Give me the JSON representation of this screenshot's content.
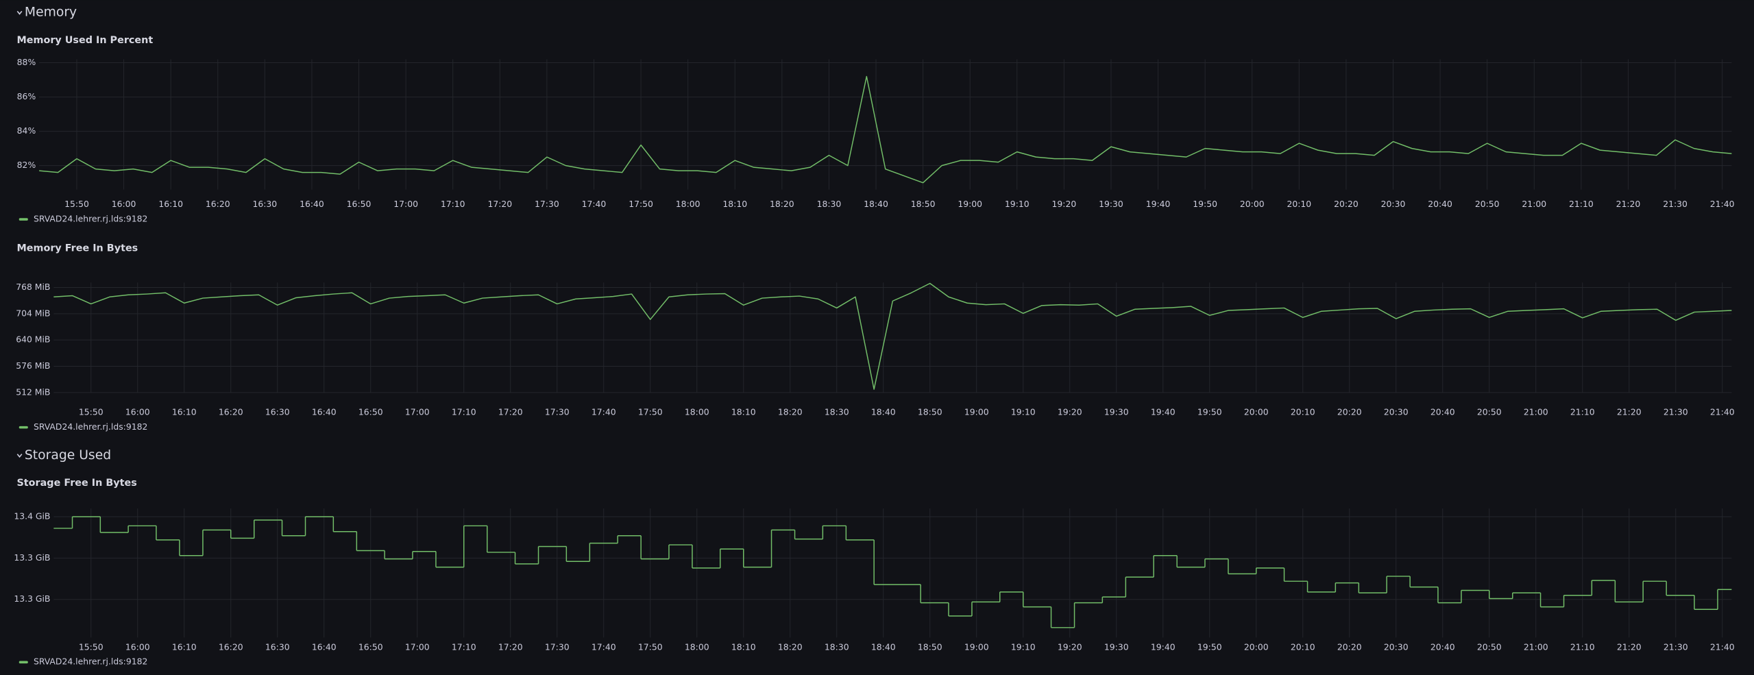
{
  "sections": [
    "Memory",
    "Storage Used"
  ],
  "chart_data": [
    {
      "type": "line",
      "title": "Memory Used In Percent",
      "grid": true,
      "x": [
        "15:42",
        "15:46",
        "15:50",
        "15:54",
        "15:58",
        "16:02",
        "16:06",
        "16:10",
        "16:14",
        "16:18",
        "16:22",
        "16:26",
        "16:30",
        "16:34",
        "16:38",
        "16:42",
        "16:46",
        "16:50",
        "16:54",
        "16:58",
        "17:02",
        "17:06",
        "17:10",
        "17:14",
        "17:18",
        "17:22",
        "17:26",
        "17:30",
        "17:34",
        "17:38",
        "17:42",
        "17:46",
        "17:50",
        "17:54",
        "17:58",
        "18:02",
        "18:06",
        "18:10",
        "18:14",
        "18:18",
        "18:22",
        "18:26",
        "18:30",
        "18:34",
        "18:38",
        "18:42",
        "18:46",
        "18:50",
        "18:54",
        "18:58",
        "19:02",
        "19:06",
        "19:10",
        "19:14",
        "19:18",
        "19:22",
        "19:26",
        "19:30",
        "19:34",
        "19:38",
        "19:42",
        "19:46",
        "19:50",
        "19:54",
        "19:58",
        "20:02",
        "20:06",
        "20:10",
        "20:14",
        "20:18",
        "20:22",
        "20:26",
        "20:30",
        "20:34",
        "20:38",
        "20:42",
        "20:46",
        "20:50",
        "20:54",
        "20:58",
        "21:02",
        "21:06",
        "21:10",
        "21:14",
        "21:18",
        "21:22",
        "21:26",
        "21:30",
        "21:34",
        "21:38",
        "21:42"
      ],
      "series": [
        {
          "name": "SRVAD24.lehrer.rj.lds:9182",
          "color": "#73bf69",
          "values": [
            81.7,
            81.6,
            82.4,
            81.8,
            81.7,
            81.8,
            81.6,
            82.3,
            81.9,
            81.9,
            81.8,
            81.6,
            82.4,
            81.8,
            81.6,
            81.6,
            81.5,
            82.2,
            81.7,
            81.8,
            81.8,
            81.7,
            82.3,
            81.9,
            81.8,
            81.7,
            81.6,
            82.5,
            82.0,
            81.8,
            81.7,
            81.6,
            83.2,
            81.8,
            81.7,
            81.7,
            81.6,
            82.3,
            81.9,
            81.8,
            81.7,
            81.9,
            82.6,
            82.0,
            87.2,
            81.8,
            81.4,
            81.0,
            82.0,
            82.3,
            82.3,
            82.2,
            82.8,
            82.5,
            82.4,
            82.4,
            82.3,
            83.1,
            82.8,
            82.7,
            82.6,
            82.5,
            83.0,
            82.9,
            82.8,
            82.8,
            82.7,
            83.3,
            82.9,
            82.7,
            82.7,
            82.6,
            83.4,
            83.0,
            82.8,
            82.8,
            82.7,
            83.3,
            82.8,
            82.7,
            82.6,
            82.6,
            83.3,
            82.9,
            82.8,
            82.7,
            82.6,
            83.5,
            83.0,
            82.8,
            82.7
          ]
        }
      ],
      "xlim": [
        "15:42",
        "21:42"
      ],
      "xticks": [
        "15:50",
        "16:00",
        "16:10",
        "16:20",
        "16:30",
        "16:40",
        "16:50",
        "17:00",
        "17:10",
        "17:20",
        "17:30",
        "17:40",
        "17:50",
        "18:00",
        "18:10",
        "18:20",
        "18:30",
        "18:40",
        "18:50",
        "19:00",
        "19:10",
        "19:20",
        "19:30",
        "19:40",
        "19:50",
        "20:00",
        "20:10",
        "20:20",
        "20:30",
        "20:40",
        "20:50",
        "21:00",
        "21:10",
        "21:20",
        "21:30",
        "21:40"
      ],
      "ylim": [
        80.6,
        88.2
      ],
      "yticks": [
        {
          "value": 82,
          "label": "82%"
        },
        {
          "value": 84,
          "label": "84%"
        },
        {
          "value": 86,
          "label": "86%"
        },
        {
          "value": 88,
          "label": "88%"
        }
      ]
    },
    {
      "type": "line",
      "title": "Memory Free In Bytes",
      "grid": true,
      "x": [
        "15:42",
        "15:46",
        "15:50",
        "15:54",
        "15:58",
        "16:02",
        "16:06",
        "16:10",
        "16:14",
        "16:18",
        "16:22",
        "16:26",
        "16:30",
        "16:34",
        "16:38",
        "16:42",
        "16:46",
        "16:50",
        "16:54",
        "16:58",
        "17:02",
        "17:06",
        "17:10",
        "17:14",
        "17:18",
        "17:22",
        "17:26",
        "17:30",
        "17:34",
        "17:38",
        "17:42",
        "17:46",
        "17:50",
        "17:54",
        "17:58",
        "18:02",
        "18:06",
        "18:10",
        "18:14",
        "18:18",
        "18:22",
        "18:26",
        "18:30",
        "18:34",
        "18:38",
        "18:42",
        "18:46",
        "18:50",
        "18:54",
        "18:58",
        "19:02",
        "19:06",
        "19:10",
        "19:14",
        "19:18",
        "19:22",
        "19:26",
        "19:30",
        "19:34",
        "19:38",
        "19:42",
        "19:46",
        "19:50",
        "19:54",
        "19:58",
        "20:02",
        "20:06",
        "20:10",
        "20:14",
        "20:18",
        "20:22",
        "20:26",
        "20:30",
        "20:34",
        "20:38",
        "20:42",
        "20:46",
        "20:50",
        "20:54",
        "20:58",
        "21:02",
        "21:06",
        "21:10",
        "21:14",
        "21:18",
        "21:22",
        "21:26",
        "21:30",
        "21:34",
        "21:38",
        "21:42"
      ],
      "series": [
        {
          "name": "SRVAD24.lehrer.rj.lds:9182",
          "color": "#73bf69",
          "values": [
            745,
            748,
            728,
            745,
            750,
            752,
            755,
            730,
            742,
            745,
            748,
            750,
            725,
            743,
            748,
            752,
            755,
            728,
            742,
            746,
            748,
            750,
            730,
            742,
            745,
            748,
            750,
            728,
            740,
            743,
            746,
            752,
            690,
            745,
            750,
            752,
            753,
            725,
            742,
            745,
            747,
            740,
            718,
            745,
            520,
            735,
            755,
            778,
            745,
            730,
            726,
            728,
            705,
            724,
            726,
            725,
            728,
            698,
            715,
            717,
            719,
            722,
            700,
            712,
            714,
            716,
            718,
            695,
            710,
            713,
            716,
            717,
            692,
            710,
            713,
            715,
            716,
            695,
            710,
            712,
            714,
            716,
            694,
            710,
            712,
            714,
            715,
            688,
            708,
            710,
            712
          ]
        }
      ],
      "xlim": [
        "15:42",
        "21:42"
      ],
      "xticks": [
        "15:50",
        "16:00",
        "16:10",
        "16:20",
        "16:30",
        "16:40",
        "16:50",
        "17:00",
        "17:10",
        "17:20",
        "17:30",
        "17:40",
        "17:50",
        "18:00",
        "18:10",
        "18:20",
        "18:30",
        "18:40",
        "18:50",
        "19:00",
        "19:10",
        "19:20",
        "19:30",
        "19:40",
        "19:50",
        "20:00",
        "20:10",
        "20:20",
        "20:30",
        "20:40",
        "20:50",
        "21:00",
        "21:10",
        "21:20",
        "21:30",
        "21:40"
      ],
      "ylim": [
        512,
        780
      ],
      "yticks": [
        {
          "value": 512,
          "label": "512 MiB"
        },
        {
          "value": 576,
          "label": "576 MiB"
        },
        {
          "value": 640,
          "label": "640 MiB"
        },
        {
          "value": 704,
          "label": "704 MiB"
        },
        {
          "value": 768,
          "label": "768 MiB"
        }
      ]
    },
    {
      "type": "line",
      "interpolation": "stepAfter",
      "title": "Storage Free In Bytes",
      "grid": true,
      "x": [
        "15:42",
        "15:46",
        "15:52",
        "15:58",
        "16:04",
        "16:09",
        "16:14",
        "16:20",
        "16:25",
        "16:31",
        "16:36",
        "16:42",
        "16:47",
        "16:53",
        "16:59",
        "17:04",
        "17:10",
        "17:15",
        "17:21",
        "17:26",
        "17:32",
        "17:37",
        "17:43",
        "17:48",
        "17:54",
        "17:59",
        "18:05",
        "18:10",
        "18:16",
        "18:21",
        "18:27",
        "18:32",
        "18:38",
        "18:48",
        "18:54",
        "18:59",
        "19:05",
        "19:10",
        "19:16",
        "19:21",
        "19:27",
        "19:32",
        "19:38",
        "19:43",
        "19:49",
        "19:54",
        "20:00",
        "20:06",
        "20:11",
        "20:17",
        "20:22",
        "20:28",
        "20:33",
        "20:39",
        "20:44",
        "20:50",
        "20:55",
        "21:01",
        "21:06",
        "21:12",
        "21:17",
        "21:23",
        "21:28",
        "21:34",
        "21:39"
      ],
      "series": [
        {
          "name": "SRVAD24.lehrer.rj.lds:9182",
          "color": "#73bf69",
          "values": [
            13.386,
            13.4,
            13.381,
            13.389,
            13.372,
            13.353,
            13.384,
            13.374,
            13.396,
            13.377,
            13.4,
            13.382,
            13.359,
            13.349,
            13.358,
            13.339,
            13.389,
            13.357,
            13.343,
            13.364,
            13.346,
            13.368,
            13.377,
            13.349,
            13.366,
            13.338,
            13.361,
            13.339,
            13.384,
            13.373,
            13.389,
            13.372,
            13.318,
            13.296,
            13.28,
            13.297,
            13.309,
            13.291,
            13.266,
            13.296,
            13.303,
            13.327,
            13.353,
            13.339,
            13.349,
            13.331,
            13.338,
            13.322,
            13.309,
            13.32,
            13.308,
            13.328,
            13.315,
            13.296,
            13.311,
            13.301,
            13.308,
            13.291,
            13.305,
            13.323,
            13.297,
            13.322,
            13.305,
            13.288,
            13.312
          ]
        }
      ],
      "xlim": [
        "15:42",
        "21:42"
      ],
      "xticks": [
        "15:50",
        "16:00",
        "16:10",
        "16:20",
        "16:30",
        "16:40",
        "16:50",
        "17:00",
        "17:10",
        "17:20",
        "17:30",
        "17:40",
        "17:50",
        "18:00",
        "18:10",
        "18:20",
        "18:30",
        "18:40",
        "18:50",
        "19:00",
        "19:10",
        "19:20",
        "19:30",
        "19:40",
        "19:50",
        "20:00",
        "20:10",
        "20:20",
        "20:30",
        "20:40",
        "20:50",
        "21:00",
        "21:10",
        "21:20",
        "21:30",
        "21:40"
      ],
      "ylim": [
        13.254,
        13.41
      ],
      "yticks": [
        {
          "value": 13.3,
          "label": "13.3 GiB"
        },
        {
          "value": 13.35,
          "label": "13.3 GiB"
        },
        {
          "value": 13.4,
          "label": "13.4 GiB"
        }
      ]
    }
  ]
}
